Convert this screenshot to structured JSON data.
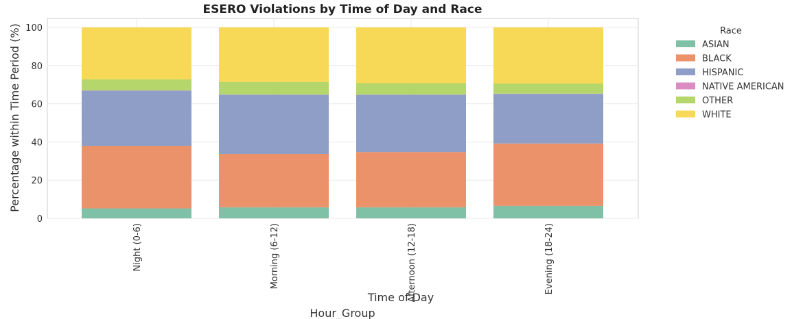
{
  "chart_data": {
    "type": "bar",
    "stacked": true,
    "title": "ESERO Violations by Time of Day and Race",
    "xlabel": "Time of Day",
    "xlabel_secondary": "Hour_Group",
    "ylabel": "Percentage within Time Period (%)",
    "ylim": [
      0,
      100
    ],
    "yticks": [
      0,
      20,
      40,
      60,
      80,
      100
    ],
    "grid": true,
    "legend": {
      "title": "Race",
      "placement": "outside-right"
    },
    "categories": [
      "Night (0-6)",
      "Morning (6-12)",
      "Afternoon (12-18)",
      "Evening (18-24)"
    ],
    "series": [
      {
        "name": "ASIAN",
        "color": "#7fc1a7",
        "values": [
          5.2,
          5.8,
          5.8,
          6.5
        ]
      },
      {
        "name": "BLACK",
        "color": "#eb926a",
        "values": [
          32.8,
          27.9,
          28.9,
          32.7
        ]
      },
      {
        "name": "HISPANIC",
        "color": "#8f9ec7",
        "values": [
          28.9,
          31.0,
          30.0,
          26.0
        ]
      },
      {
        "name": "NATIVE AMERICAN",
        "color": "#dd8cc2",
        "values": [
          0.1,
          0.1,
          0.1,
          0.1
        ]
      },
      {
        "name": "OTHER",
        "color": "#b5d66b",
        "values": [
          5.8,
          6.6,
          6.0,
          5.3
        ]
      },
      {
        "name": "WHITE",
        "color": "#f7d957",
        "values": [
          27.2,
          28.6,
          29.2,
          29.4
        ]
      }
    ]
  }
}
